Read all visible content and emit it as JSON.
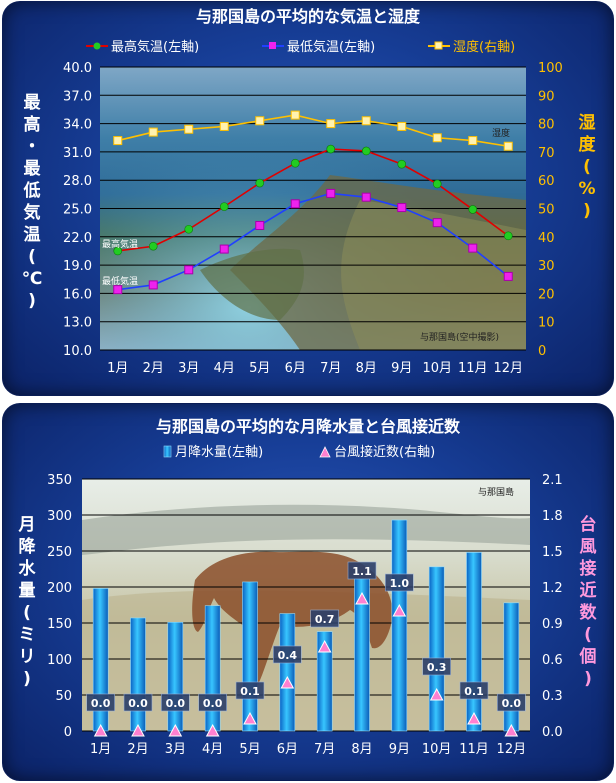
{
  "chart_data": [
    {
      "type": "line",
      "title": "与那国島の平均的な気温と湿度",
      "categories": [
        "1月",
        "2月",
        "3月",
        "4月",
        "5月",
        "6月",
        "7月",
        "8月",
        "9月",
        "10月",
        "11月",
        "12月"
      ],
      "legend_position": "top",
      "series": [
        {
          "name": "最高気温(左軸)",
          "axis": "left",
          "color": "#e00000",
          "marker": "circle",
          "marker_color": "#22cc22",
          "values": [
            20.5,
            21.0,
            22.8,
            25.2,
            27.7,
            29.8,
            31.3,
            31.1,
            29.7,
            27.6,
            24.9,
            22.1
          ]
        },
        {
          "name": "最低気温(左軸)",
          "axis": "left",
          "color": "#2040ff",
          "marker": "square",
          "marker_color": "#ee22ee",
          "values": [
            16.4,
            16.9,
            18.5,
            20.7,
            23.2,
            25.5,
            26.6,
            26.2,
            25.1,
            23.5,
            20.8,
            17.8
          ]
        },
        {
          "name": "湿度(右軸)",
          "axis": "right",
          "color": "#ffc000",
          "marker": "square",
          "marker_color": "#fff2b0",
          "values": [
            74,
            77,
            78,
            79,
            81,
            83,
            80,
            81,
            79,
            75,
            74,
            72
          ]
        }
      ],
      "ylabel_left": "最高・最低気温(℃)",
      "ylabel_right": "湿度(%)",
      "y_left_range": [
        10.0,
        40.0
      ],
      "y_left_ticks": [
        "10.0",
        "13.0",
        "16.0",
        "19.0",
        "22.0",
        "25.0",
        "28.0",
        "31.0",
        "34.0",
        "37.0",
        "40.0"
      ],
      "y_right_range": [
        0,
        100
      ],
      "y_right_ticks": [
        "0",
        "10",
        "20",
        "30",
        "40",
        "50",
        "60",
        "70",
        "80",
        "90",
        "100"
      ],
      "grid": true,
      "annotations": {
        "max_label": "最高気温",
        "min_label": "最低気温",
        "humidity_label": "湿度",
        "photo_caption": "与那国島(空中撮影)"
      }
    },
    {
      "type": "bar",
      "title": "与那国島の平均的な月降水量と台風接近数",
      "categories": [
        "1月",
        "2月",
        "3月",
        "4月",
        "5月",
        "6月",
        "7月",
        "8月",
        "9月",
        "10月",
        "11月",
        "12月"
      ],
      "legend_position": "top",
      "series": [
        {
          "name": "月降水量(左軸)",
          "axis": "left",
          "type": "bar",
          "color": "#18a8f0",
          "values": [
            198,
            157,
            151,
            174,
            207,
            163,
            138,
            212,
            293,
            228,
            248,
            178
          ]
        },
        {
          "name": "台風接近数(右軸)",
          "axis": "right",
          "type": "marker",
          "marker": "triangle",
          "color": "#ff80d0",
          "values": [
            0.0,
            0.0,
            0.0,
            0.0,
            0.1,
            0.4,
            0.7,
            1.1,
            1.0,
            0.3,
            0.1,
            0.0
          ],
          "labels": [
            "0.0",
            "0.0",
            "0.0",
            "0.0",
            "0.1",
            "0.4",
            "0.7",
            "1.1",
            "1.0",
            "0.3",
            "0.1",
            "0.0"
          ]
        }
      ],
      "ylabel_left": "月降水量(ミリ)",
      "ylabel_right": "台風接近数(個)",
      "y_left_range": [
        0,
        350
      ],
      "y_left_ticks": [
        "0",
        "50",
        "100",
        "150",
        "200",
        "250",
        "300",
        "350"
      ],
      "y_right_range": [
        0,
        2.1
      ],
      "y_right_ticks": [
        "0.0",
        "0.3",
        "0.6",
        "0.9",
        "1.2",
        "1.5",
        "1.8",
        "2.1"
      ],
      "grid": true,
      "annotations": {
        "photo_caption": "与那国島"
      }
    }
  ]
}
